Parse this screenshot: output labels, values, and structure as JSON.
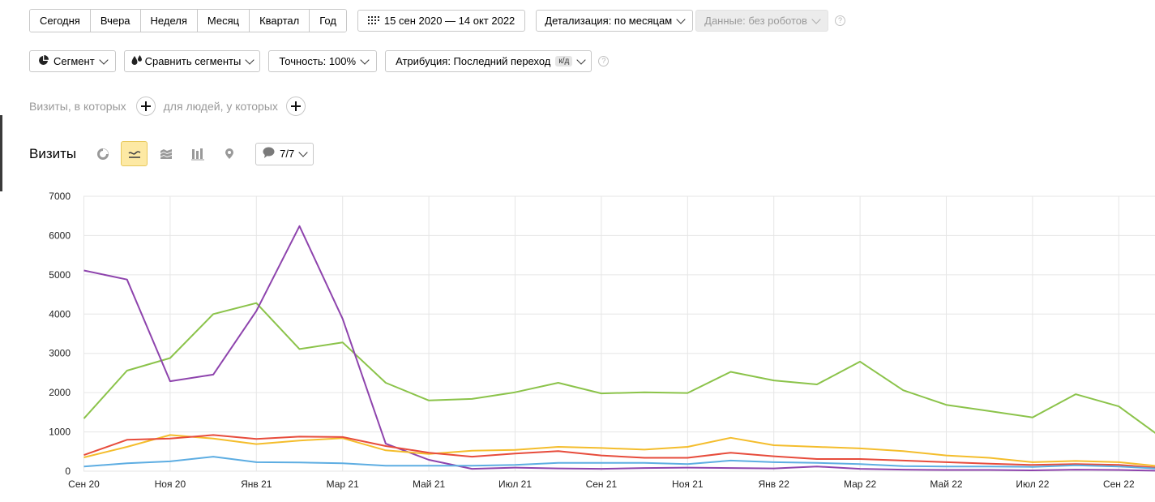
{
  "period_buttons": [
    "Сегодня",
    "Вчера",
    "Неделя",
    "Месяц",
    "Квартал",
    "Год"
  ],
  "date_range": "15 сен 2020 — 14 окт 2022",
  "detail_label": "Детализация: по месяцам",
  "data_label": "Данные: без роботов",
  "segment_label": "Сегмент",
  "compare_label": "Сравнить сегменты",
  "accuracy_label": "Точность: 100%",
  "attribution_label": "Атрибуция: Последний переход",
  "attribution_tag": "к/д",
  "filter_visits": "Визиты, в которых",
  "filter_people": "для людей, у которых",
  "chart_title": "Визиты",
  "series_counter": "7/7",
  "help_glyph": "?",
  "chart_data": {
    "type": "line",
    "title": "Визиты",
    "x": [
      "Сен 20",
      "Окт 20",
      "Ноя 20",
      "Дек 20",
      "Янв 21",
      "Фев 21",
      "Мар 21",
      "Апр 21",
      "Май 21",
      "Июн 21",
      "Июл 21",
      "Авг 21",
      "Сен 21",
      "Окт 21",
      "Ноя 21",
      "Дек 21",
      "Янв 22",
      "Фев 22",
      "Мар 22",
      "Апр 22",
      "Май 22",
      "Июн 22",
      "Июл 22",
      "Авг 22",
      "Сен 22",
      "Окт 22"
    ],
    "xticks": [
      "Сен 20",
      "Ноя 20",
      "Янв 21",
      "Мар 21",
      "Май 21",
      "Июл 21",
      "Сен 21",
      "Ноя 21",
      "Янв 22",
      "Мар 22",
      "Май 22",
      "Июл 22",
      "Сен 22"
    ],
    "ylim": [
      0,
      7000
    ],
    "yticks": [
      0,
      1000,
      2000,
      3000,
      4000,
      5000,
      6000,
      7000
    ],
    "ytick_labels": [
      "0",
      "1000",
      "2000",
      "3000",
      "4000",
      "5000",
      "6000",
      "7000"
    ],
    "grid": true,
    "series": [
      {
        "color": "#8bc34a",
        "values": [
          1340,
          2560,
          2880,
          4000,
          4280,
          3110,
          3280,
          2250,
          1800,
          1840,
          2010,
          2250,
          1980,
          2010,
          1990,
          2530,
          2310,
          2210,
          2790,
          2060,
          1690,
          1530,
          1370,
          1960,
          1650,
          850
        ]
      },
      {
        "color": "#8e44ad",
        "values": [
          5110,
          4880,
          2290,
          2460,
          4080,
          6240,
          3880,
          700,
          290,
          60,
          90,
          70,
          60,
          80,
          90,
          80,
          70,
          120,
          60,
          40,
          30,
          30,
          20,
          40,
          30,
          10
        ]
      },
      {
        "color": "#f4bd2c",
        "values": [
          350,
          620,
          920,
          830,
          690,
          780,
          840,
          530,
          440,
          520,
          540,
          620,
          590,
          550,
          620,
          850,
          660,
          620,
          580,
          510,
          400,
          340,
          230,
          260,
          230,
          120
        ]
      },
      {
        "color": "#e74c3c",
        "values": [
          410,
          800,
          830,
          920,
          820,
          880,
          870,
          640,
          470,
          370,
          450,
          510,
          400,
          340,
          340,
          470,
          380,
          310,
          310,
          270,
          230,
          190,
          160,
          180,
          160,
          80
        ]
      },
      {
        "color": "#5dade2",
        "values": [
          120,
          200,
          250,
          370,
          230,
          220,
          200,
          140,
          140,
          140,
          160,
          210,
          210,
          210,
          180,
          270,
          230,
          210,
          180,
          130,
          120,
          120,
          110,
          150,
          120,
          60
        ]
      }
    ]
  }
}
